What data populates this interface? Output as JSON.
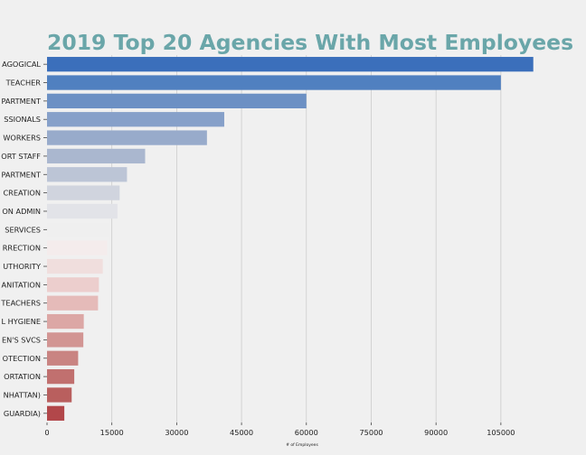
{
  "chart_data": {
    "type": "bar",
    "orientation": "horizontal",
    "title": "2019 Top 20 Agencies With Most Employees",
    "xlabel": "# of Employees",
    "ylabel": "",
    "xlim": [
      0,
      118000
    ],
    "xticks": [
      0,
      15000,
      30000,
      45000,
      60000,
      75000,
      90000,
      105000
    ],
    "grid": "vertical",
    "categories": [
      "AGOGICAL",
      "TEACHER",
      "PARTMENT",
      "SSIONALS",
      "WORKERS",
      "ORT STAFF",
      "PARTMENT",
      "CREATION",
      "ON ADMIN",
      "SERVICES",
      "RRECTION",
      "UTHORITY",
      "ANITATION",
      "TEACHERS",
      "L HYGIENE",
      "EN'S SVCS",
      "OTECTION",
      "ORTATION",
      "NHATTAN)",
      "GUARDIA)"
    ],
    "values": [
      112500,
      105000,
      60000,
      41000,
      37000,
      22700,
      18500,
      16800,
      16300,
      14200,
      13900,
      12900,
      12000,
      11800,
      8500,
      8400,
      7200,
      6300,
      5700,
      4000
    ],
    "colors": [
      "#3b6fbb",
      "#5080c0",
      "#6c90c4",
      "#86a0c9",
      "#98abcb",
      "#aab7cf",
      "#bcc5d6",
      "#d0d4de",
      "#e2e3e8",
      "#efefef",
      "#f4ecec",
      "#f0dedd",
      "#eccecd",
      "#e5bbb9",
      "#dca7a5",
      "#d29593",
      "#c98482",
      "#c1706f",
      "#b95f5e",
      "#b2474a"
    ]
  }
}
